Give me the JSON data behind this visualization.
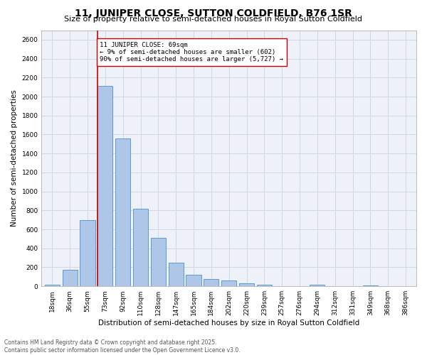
{
  "title": "11, JUNIPER CLOSE, SUTTON COLDFIELD, B76 1SR",
  "subtitle": "Size of property relative to semi-detached houses in Royal Sutton Coldfield",
  "xlabel": "Distribution of semi-detached houses by size in Royal Sutton Coldfield",
  "ylabel": "Number of semi-detached properties",
  "categories": [
    "18sqm",
    "36sqm",
    "55sqm",
    "73sqm",
    "92sqm",
    "110sqm",
    "128sqm",
    "147sqm",
    "165sqm",
    "184sqm",
    "202sqm",
    "220sqm",
    "239sqm",
    "257sqm",
    "276sqm",
    "294sqm",
    "312sqm",
    "331sqm",
    "349sqm",
    "368sqm",
    "386sqm"
  ],
  "values": [
    20,
    175,
    695,
    2110,
    1560,
    820,
    510,
    250,
    125,
    80,
    60,
    30,
    20,
    0,
    0,
    20,
    0,
    0,
    10,
    0,
    0
  ],
  "bar_color": "#aec6e8",
  "bar_edge_color": "#5b9bd5",
  "ylim": [
    0,
    2700
  ],
  "yticks": [
    0,
    200,
    400,
    600,
    800,
    1000,
    1200,
    1400,
    1600,
    1800,
    2000,
    2200,
    2400,
    2600
  ],
  "vline_color": "#cc0000",
  "annotation_text": "11 JUNIPER CLOSE: 69sqm\n← 9% of semi-detached houses are smaller (602)\n90% of semi-detached houses are larger (5,727) →",
  "annotation_box_color": "#ffffff",
  "annotation_box_edge": "#cc0000",
  "grid_color": "#d0d8e8",
  "background_color": "#eef2f8",
  "footer_text": "Contains HM Land Registry data © Crown copyright and database right 2025.\nContains public sector information licensed under the Open Government Licence v3.0.",
  "title_fontsize": 10,
  "subtitle_fontsize": 8,
  "axis_label_fontsize": 7.5,
  "tick_fontsize": 6.5,
  "annotation_fontsize": 6.5,
  "footer_fontsize": 5.5
}
